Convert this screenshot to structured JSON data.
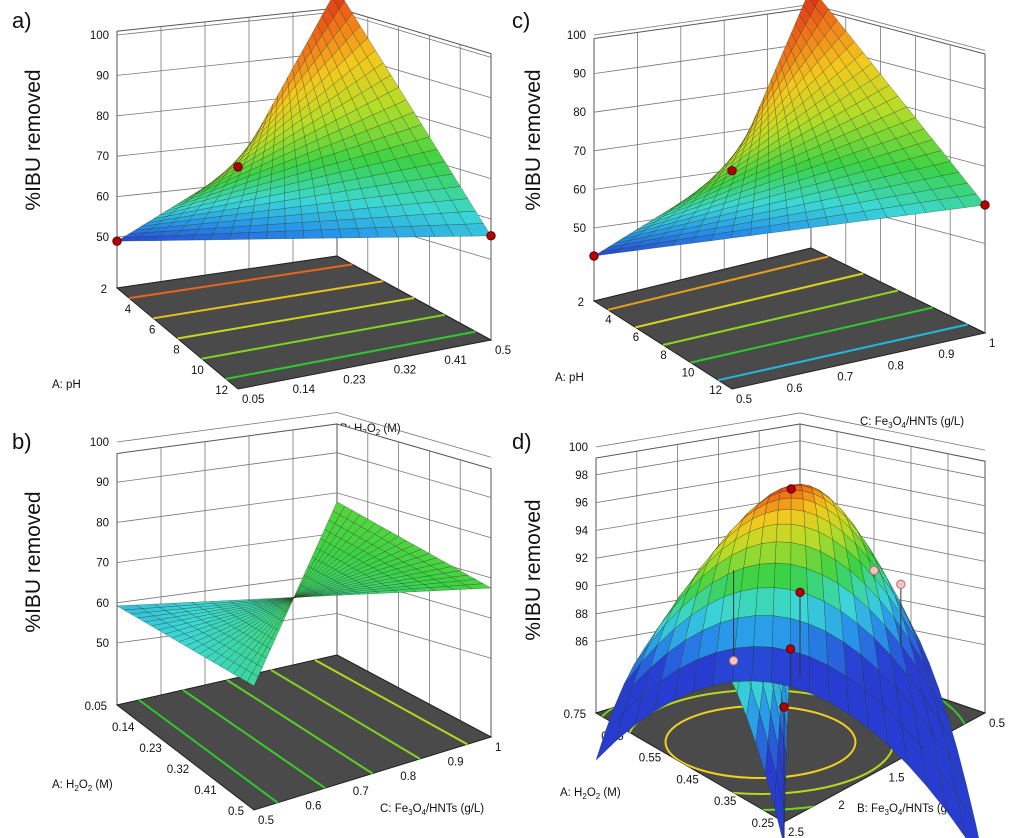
{
  "chart_data": [
    {
      "panel": "a)",
      "type": "surface3d",
      "zlabel": "%IBU removed",
      "xlabel": "A: pH",
      "ylabel_parts": [
        "B: H",
        "2",
        "O",
        "2",
        " (M)"
      ],
      "z_ticks": [
        "100",
        "90",
        "80",
        "70",
        "60",
        "50"
      ],
      "x_ticks": [
        "2",
        "4",
        "6",
        "8",
        "10",
        "12"
      ],
      "y_ticks": [
        "0.05",
        "0.14",
        "0.23",
        "0.32",
        "0.41",
        "0.5"
      ],
      "zlim": [
        50,
        100
      ],
      "corners": {
        "a_low_b_low": 89.5,
        "a_low_b_high": 99.6,
        "a_high_b_low": 50.4,
        "a_high_b_high": 63.2
      },
      "design_points": [
        {
          "a": 2,
          "b": 0.05,
          "z": 89.5
        },
        {
          "a": 2,
          "b": 0.5,
          "z": 99.6
        },
        {
          "a": 12,
          "b": 0.05,
          "z": 50.4
        },
        {
          "a": 12,
          "b": 0.5,
          "z": 63.2
        }
      ],
      "contour_colors": [
        "#e8641a",
        "#e7c21a",
        "#c9d81c",
        "#7ed620",
        "#2fc92c"
      ]
    },
    {
      "panel": "b)",
      "type": "surface3d",
      "zlabel": "%IBU removed",
      "xlabel_parts": [
        "A: H",
        "2",
        "O",
        "2",
        " (M)"
      ],
      "ylabel_parts": [
        "C: Fe",
        "3",
        "O",
        "4",
        "/HNTs (g/L)"
      ],
      "z_ticks": [
        "100",
        "90",
        "80",
        "70",
        "60",
        "50"
      ],
      "x_ticks": [
        "0.05",
        "0.14",
        "0.23",
        "0.32",
        "0.41",
        "0.5"
      ],
      "y_ticks": [
        "0.5",
        "0.6",
        "0.7",
        "0.8",
        "0.9",
        "1"
      ],
      "zlim": [
        50,
        100
      ],
      "corners": {
        "a_low_b_low": 69.0,
        "a_low_b_high": 76.0,
        "a_high_b_low": 63.0,
        "a_high_b_high": 75.0
      },
      "design_points": [],
      "contour_colors": [
        "#2fc92c",
        "#3bcc28",
        "#58d024",
        "#7ed620",
        "#b7d81c"
      ]
    },
    {
      "panel": "c)",
      "type": "surface3d",
      "zlabel": "%IBU removed",
      "xlabel": "A: pH",
      "ylabel_parts": [
        "C: Fe",
        "3",
        "O",
        "4",
        "/HNTs (g/L)"
      ],
      "z_ticks": [
        "100",
        "90",
        "80",
        "70",
        "60",
        "50"
      ],
      "x_ticks": [
        "2",
        "4",
        "6",
        "8",
        "10",
        "12"
      ],
      "y_ticks": [
        "0.5",
        "0.6",
        "0.7",
        "0.8",
        "0.9",
        "1"
      ],
      "zlim": [
        40,
        100
      ],
      "corners": {
        "a_low_b_low": 88.0,
        "a_low_b_high": 99.8,
        "a_high_b_low": 40.0,
        "a_high_b_high": 63.0
      },
      "design_points": [
        {
          "a": 2,
          "b": 0.5,
          "z": 88.0
        },
        {
          "a": 2,
          "b": 1,
          "z": 99.8
        },
        {
          "a": 12,
          "b": 0.5,
          "z": 40.0
        },
        {
          "a": 12,
          "b": 1,
          "z": 63.0
        }
      ],
      "contour_colors": [
        "#e8a01a",
        "#d8d31c",
        "#8ed61e",
        "#2fc92c",
        "#22b6d8"
      ]
    },
    {
      "panel": "d)",
      "type": "surface3d",
      "zlabel": "%IBU removed",
      "xlabel_parts": [
        "A: H",
        "2",
        "O",
        "2",
        " (M)"
      ],
      "ylabel_parts": [
        "B: Fe",
        "3",
        "O",
        "4",
        "/HNTs (g/L)"
      ],
      "z_ticks": [
        "100",
        "98",
        "96",
        "94",
        "92",
        "90",
        "88",
        "86"
      ],
      "x_ticks": [
        "0.75",
        "0.65",
        "0.55",
        "0.45",
        "0.35",
        "0.25"
      ],
      "y_ticks": [
        "2.5",
        "2",
        "1.5",
        "1",
        "0.5"
      ],
      "zlim": [
        84,
        100
      ],
      "peak": 99.5,
      "design_points": [
        {
          "a": 0.75,
          "b": 2.5,
          "z": 89.5,
          "style": "filled"
        },
        {
          "a": 0.5,
          "b": 1.5,
          "z": 99.0,
          "style": "filled"
        },
        {
          "a": 0.25,
          "b": 1.5,
          "z": 85.5,
          "style": "filled"
        },
        {
          "a": 0.75,
          "b": 0.5,
          "z": 85.0,
          "style": "filled"
        },
        {
          "a": 0.55,
          "b": 2.2,
          "z": 88.5,
          "style": "open"
        },
        {
          "a": 0.4,
          "b": 0.9,
          "z": 91.0,
          "style": "open"
        },
        {
          "a": 0.35,
          "b": 0.8,
          "z": 90.0,
          "style": "open"
        }
      ],
      "contour_colors": [
        "#f2cf1c",
        "#b9d81c",
        "#6fd422",
        "#2fc92c",
        "#22c6c6",
        "#2a7fe0"
      ]
    }
  ],
  "colors": {
    "floor": "#4a4a4a",
    "grid": "#555555",
    "surface_mesh": "#1f3b10",
    "design_point": "#b30000",
    "open_point": "#f6c3c3"
  }
}
